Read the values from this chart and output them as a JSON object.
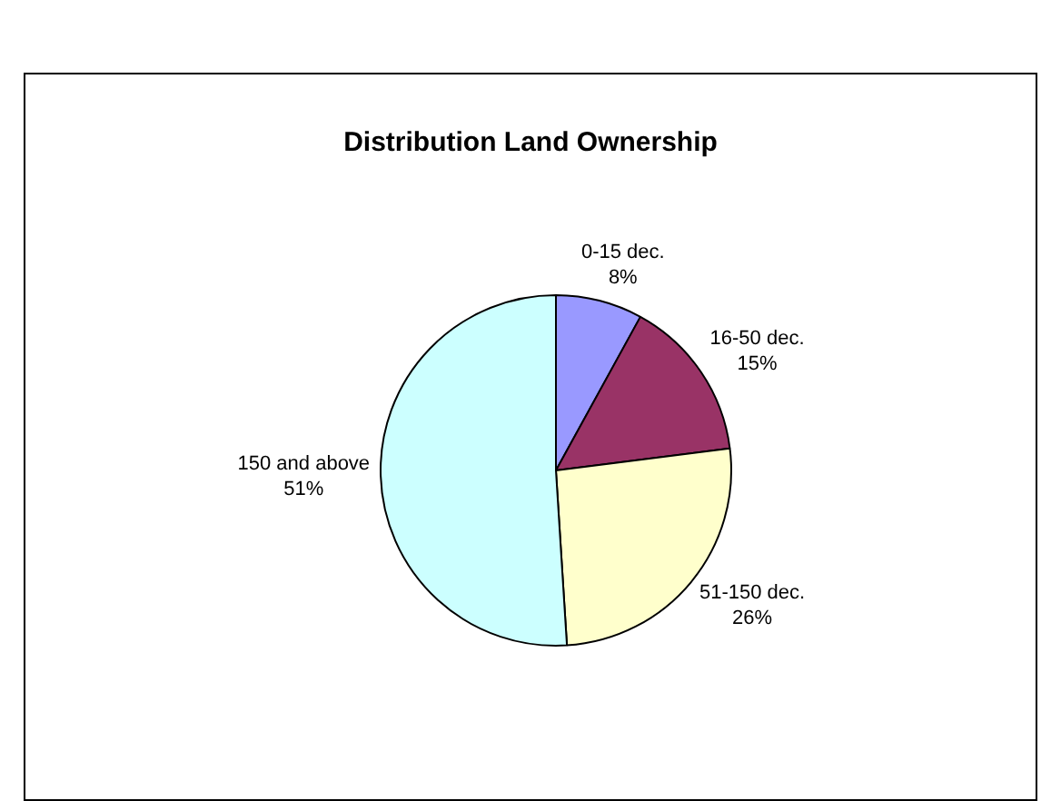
{
  "chart_data": {
    "type": "pie",
    "title": "Distribution Land Ownership",
    "categories": [
      "0-15 dec.",
      "16-50 dec.",
      "51-150 dec.",
      "150 and above"
    ],
    "values": [
      8,
      15,
      26,
      51
    ],
    "colors": [
      "#9999ff",
      "#993366",
      "#ffffcc",
      "#ccffff"
    ],
    "value_labels": [
      "8%",
      "15%",
      "26%",
      "51%"
    ],
    "legend": false
  }
}
